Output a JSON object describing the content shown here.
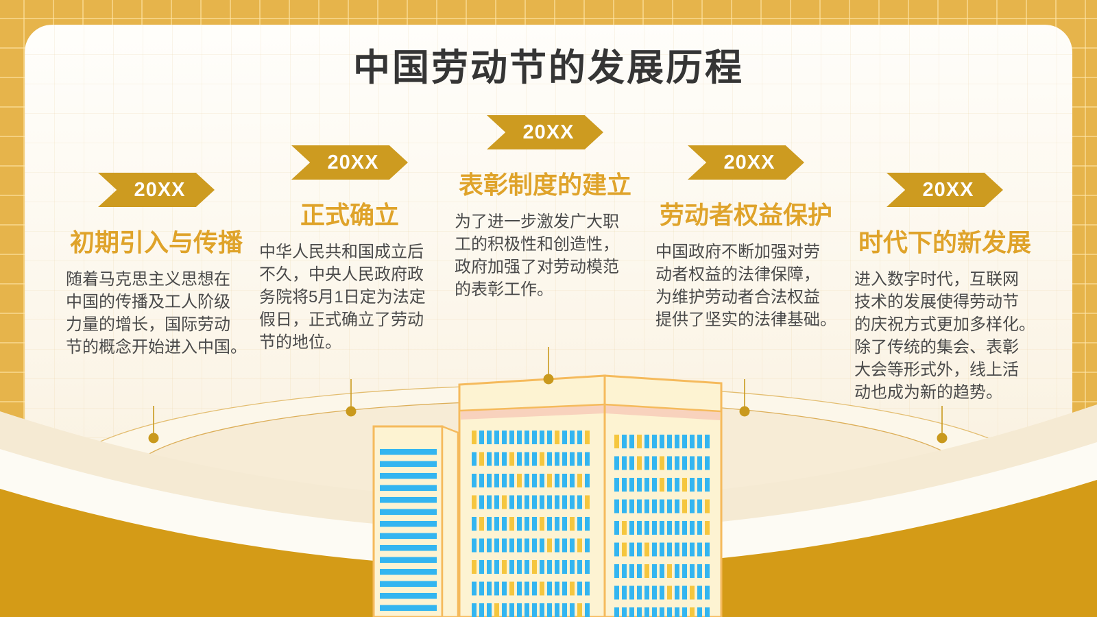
{
  "slide": {
    "title": "中国劳动节的发展历程",
    "timeline": [
      {
        "year": "20XX",
        "title": "初期引入与传播",
        "body": "随着马克思主义思想在\n中国的传播及工人阶级\n力量的增长，国际劳动\n节的概念开始进入中国。"
      },
      {
        "year": "20XX",
        "title": "正式确立",
        "body": "中华人民共和国成立后\n不久，中央人民政府政\n务院将5月1日定为法定\n假日，正式确立了劳动\n节的地位。"
      },
      {
        "year": "20XX",
        "title": "表彰制度的建立",
        "body": "为了进一步激发广大职\n工的积极性和创造性，\n政府加强了对劳动模范\n的表彰工作。"
      },
      {
        "year": "20XX",
        "title": "劳动者权益保护",
        "body": "中国政府不断加强对劳\n动者权益的法律保障，\n为维护劳动者合法权益\n提供了坚实的法律基础。"
      },
      {
        "year": "20XX",
        "title": "时代下的新发展",
        "body": "进入数字时代，互联网\n技术的发展使得劳动节\n的庆祝方式更加多样化。\n除了传统的集会、表彰\n大会等形式外，线上活\n动也成为新的趋势。"
      }
    ],
    "colors": {
      "frame_gold": "#e6b44b",
      "banner_gold": "#cd9b20",
      "heading_orange": "#dfa32a",
      "body_text": "#4a4a4a",
      "title_text": "#353535",
      "wave_gold": "#d49b17",
      "dot_gold": "#c9991d",
      "building_fill": "#fdf3d2",
      "building_border": "#f5ba5c",
      "building_pink_stripe": "#f8d2bd",
      "window_blue": "#33b5f0",
      "window_gold": "#f5c63e"
    }
  }
}
